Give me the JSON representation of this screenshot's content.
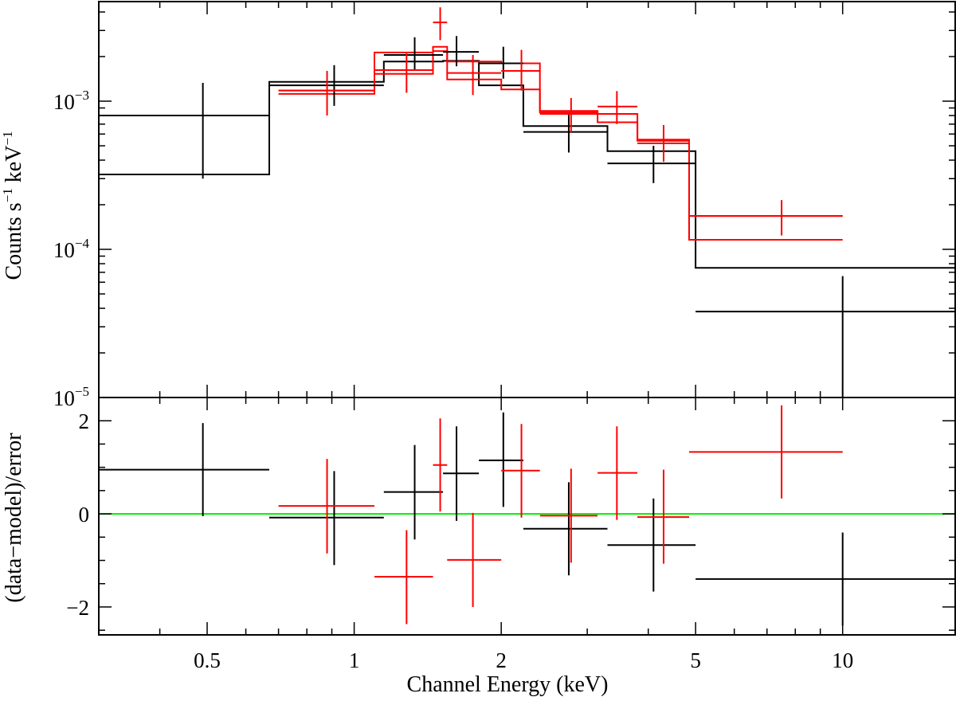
{
  "chart_data": [
    {
      "panel": "spectrum",
      "type": "scatter",
      "xscale": "log",
      "yscale": "log",
      "xlim": [
        0.3,
        17.0
      ],
      "ylim": [
        1e-05,
        0.0047
      ],
      "ylabel": {
        "base": "Counts s",
        "exp1": "−1",
        "mid": " keV",
        "exp2": "−1"
      },
      "yticks": [
        {
          "value": 0.001,
          "mant": "10",
          "exp": "−3"
        },
        {
          "value": 0.0001,
          "mant": "10",
          "exp": "−4"
        },
        {
          "value": 1e-05,
          "mant": "10",
          "exp": "−5"
        }
      ],
      "series": [
        {
          "color": "#000000",
          "points": [
            {
              "x": 0.49,
              "xlo": 0.3,
              "xhi": 0.67,
              "y": 0.0008,
              "ylo": 0.0003,
              "yhi": 0.00133
            },
            {
              "x": 0.91,
              "xlo": 0.67,
              "xhi": 1.15,
              "y": 0.00128,
              "ylo": 0.00093,
              "yhi": 0.00175
            },
            {
              "x": 1.33,
              "xlo": 1.15,
              "xhi": 1.52,
              "y": 0.00205,
              "ylo": 0.0016,
              "yhi": 0.0027
            },
            {
              "x": 1.62,
              "xlo": 1.52,
              "xhi": 1.8,
              "y": 0.00215,
              "ylo": 0.00172,
              "yhi": 0.00275
            },
            {
              "x": 2.02,
              "xlo": 1.8,
              "xhi": 2.22,
              "y": 0.0018,
              "ylo": 0.00142,
              "yhi": 0.00233
            },
            {
              "x": 2.75,
              "xlo": 2.22,
              "xhi": 3.3,
              "y": 0.00062,
              "ylo": 0.00045,
              "yhi": 0.00083
            },
            {
              "x": 4.1,
              "xlo": 3.3,
              "xhi": 5.0,
              "y": 0.00038,
              "ylo": 0.00028,
              "yhi": 0.0005
            },
            {
              "x": 10.0,
              "xlo": 5.0,
              "xhi": 17.0,
              "y": 3.8e-05,
              "ylo": 1e-05,
              "yhi": 6.6e-05
            }
          ],
          "model": {
            "edges": [
              0.3,
              0.67,
              1.15,
              1.52,
              1.8,
              2.22,
              3.3,
              5.0,
              17.0
            ],
            "values": [
              0.00032,
              0.00135,
              0.00185,
              0.00187,
              0.00128,
              0.00068,
              0.00046,
              7.5e-05
            ]
          }
        },
        {
          "color": "#ff0000",
          "points": [
            {
              "x": 0.88,
              "xlo": 0.7,
              "xhi": 1.1,
              "y": 0.00118,
              "ylo": 0.0008,
              "yhi": 0.0016
            },
            {
              "x": 1.28,
              "xlo": 1.1,
              "xhi": 1.45,
              "y": 0.00162,
              "ylo": 0.00114,
              "yhi": 0.0021
            },
            {
              "x": 1.5,
              "xlo": 1.45,
              "xhi": 1.55,
              "y": 0.0034,
              "ylo": 0.00258,
              "yhi": 0.0043
            },
            {
              "x": 1.75,
              "xlo": 1.55,
              "xhi": 2.0,
              "y": 0.00155,
              "ylo": 0.0011,
              "yhi": 0.00205
            },
            {
              "x": 2.2,
              "xlo": 2.0,
              "xhi": 2.4,
              "y": 0.0016,
              "ylo": 0.00118,
              "yhi": 0.00222
            },
            {
              "x": 2.78,
              "xlo": 2.4,
              "xhi": 3.15,
              "y": 0.00082,
              "ylo": 0.00061,
              "yhi": 0.00105
            },
            {
              "x": 3.45,
              "xlo": 3.15,
              "xhi": 3.8,
              "y": 0.00092,
              "ylo": 0.0007,
              "yhi": 0.00117
            },
            {
              "x": 4.3,
              "xlo": 3.8,
              "xhi": 4.85,
              "y": 0.00052,
              "ylo": 0.00039,
              "yhi": 0.00069
            },
            {
              "x": 7.5,
              "xlo": 4.85,
              "xhi": 10.0,
              "y": 0.000168,
              "ylo": 0.000124,
              "yhi": 0.000215
            }
          ],
          "model": {
            "edges": [
              0.7,
              1.1,
              1.45,
              1.55,
              2.0,
              2.4,
              3.15,
              3.8,
              4.85,
              10.0
            ],
            "values": [
              0.00112,
              0.00153,
              0.00233,
              0.0014,
              0.0012,
              0.00084,
              0.00072,
              0.00054,
              0.000116
            ]
          }
        },
        {
          "color": "#ff0000",
          "model": {
            "edges": [
              0.7,
              1.1,
              1.45,
              1.55,
              2.0,
              2.4,
              3.15,
              3.8,
              4.85,
              10.0
            ],
            "values": [
              0.00118,
              0.00213,
              0.00218,
              0.00185,
              0.0018,
              0.00086,
              0.00082,
              0.00055,
              0.000168
            ]
          }
        }
      ]
    },
    {
      "panel": "residuals",
      "type": "scatter",
      "xscale": "log",
      "xlim": [
        0.3,
        17.0
      ],
      "ylim": [
        -2.6,
        2.5
      ],
      "xlabel": "Channel Energy (keV)",
      "ylabel": "(data−model)/error",
      "xticks": [
        {
          "value": 0.5,
          "label": "0.5"
        },
        {
          "value": 1,
          "label": "1"
        },
        {
          "value": 2,
          "label": "2"
        },
        {
          "value": 5,
          "label": "5"
        },
        {
          "value": 10,
          "label": "10"
        }
      ],
      "yticks": [
        {
          "value": 2,
          "label": "2"
        },
        {
          "value": 0,
          "label": "0"
        },
        {
          "value": -2,
          "label": "−2"
        }
      ],
      "zero_line_color": "#00ee00",
      "series": [
        {
          "color": "#000000",
          "points": [
            {
              "x": 0.49,
              "xlo": 0.3,
              "xhi": 0.67,
              "y": 0.95,
              "ylo": -0.05,
              "yhi": 1.95
            },
            {
              "x": 0.91,
              "xlo": 0.67,
              "xhi": 1.15,
              "y": -0.08,
              "ylo": -1.1,
              "yhi": 0.92
            },
            {
              "x": 1.33,
              "xlo": 1.15,
              "xhi": 1.52,
              "y": 0.47,
              "ylo": -0.55,
              "yhi": 1.48
            },
            {
              "x": 1.62,
              "xlo": 1.52,
              "xhi": 1.8,
              "y": 0.87,
              "ylo": -0.15,
              "yhi": 1.88
            },
            {
              "x": 2.02,
              "xlo": 1.8,
              "xhi": 2.22,
              "y": 1.15,
              "ylo": 0.15,
              "yhi": 2.18
            },
            {
              "x": 2.75,
              "xlo": 2.22,
              "xhi": 3.3,
              "y": -0.32,
              "ylo": -1.32,
              "yhi": 0.68
            },
            {
              "x": 4.1,
              "xlo": 3.3,
              "xhi": 5.0,
              "y": -0.67,
              "ylo": -1.67,
              "yhi": 0.33
            },
            {
              "x": 10.0,
              "xlo": 5.0,
              "xhi": 17.0,
              "y": -1.4,
              "ylo": -2.4,
              "yhi": -0.4
            }
          ]
        },
        {
          "color": "#ff0000",
          "points": [
            {
              "x": 0.88,
              "xlo": 0.7,
              "xhi": 1.1,
              "y": 0.17,
              "ylo": -0.85,
              "yhi": 1.18
            },
            {
              "x": 1.28,
              "xlo": 1.1,
              "xhi": 1.45,
              "y": -1.35,
              "ylo": -2.37,
              "yhi": -0.35
            },
            {
              "x": 1.5,
              "xlo": 1.45,
              "xhi": 1.55,
              "y": 1.05,
              "ylo": 0.05,
              "yhi": 2.05
            },
            {
              "x": 1.75,
              "xlo": 1.55,
              "xhi": 2.0,
              "y": -0.99,
              "ylo": -2.0,
              "yhi": 0.02
            },
            {
              "x": 2.2,
              "xlo": 2.0,
              "xhi": 2.4,
              "y": 0.93,
              "ylo": -0.08,
              "yhi": 1.93
            },
            {
              "x": 2.78,
              "xlo": 2.4,
              "xhi": 3.15,
              "y": -0.04,
              "ylo": -1.05,
              "yhi": 0.97
            },
            {
              "x": 3.45,
              "xlo": 3.15,
              "xhi": 3.8,
              "y": 0.88,
              "ylo": -0.13,
              "yhi": 1.88
            },
            {
              "x": 4.3,
              "xlo": 3.8,
              "xhi": 4.85,
              "y": -0.07,
              "ylo": -1.07,
              "yhi": 0.95
            },
            {
              "x": 7.5,
              "xlo": 4.85,
              "xhi": 10.0,
              "y": 1.33,
              "ylo": 0.33,
              "yhi": 2.33
            }
          ]
        }
      ]
    }
  ]
}
